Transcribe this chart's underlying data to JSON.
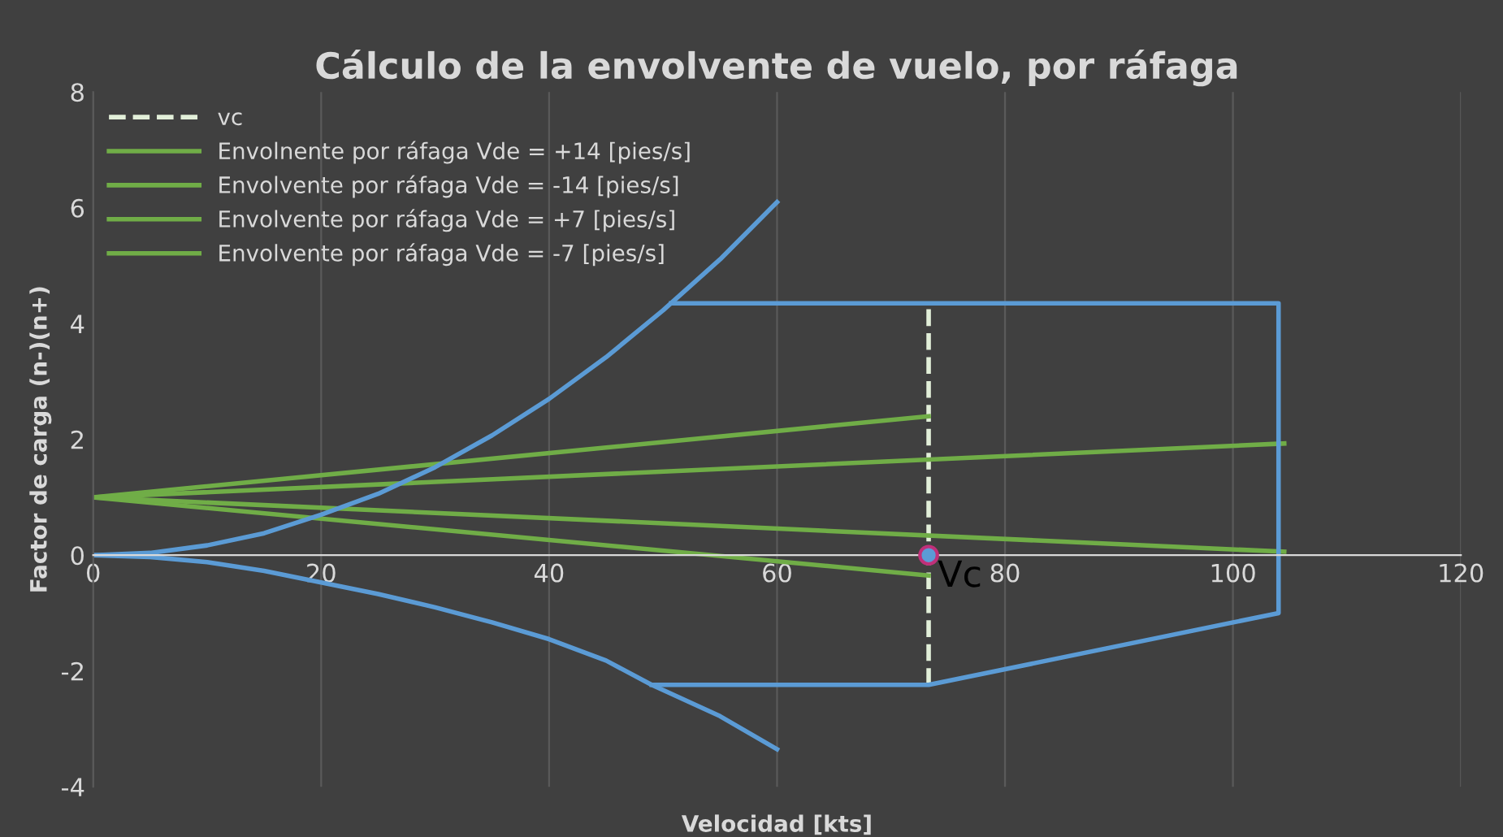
{
  "chart_data": {
    "type": "line",
    "title": "Cálculo de la envolvente de vuelo, por ráfaga",
    "xlabel": "Velocidad [kts]",
    "ylabel": "Factor de carga (n-)(n+)",
    "xlim": [
      0,
      120
    ],
    "xticks": [
      0,
      20,
      40,
      60,
      80,
      100,
      120
    ],
    "ylim": [
      -4,
      8
    ],
    "yticks": [
      -4,
      -2,
      0,
      2,
      4,
      6,
      8
    ],
    "grid": "x",
    "legend": "top left",
    "marker": "none",
    "line_style": "solid",
    "series": [
      {
        "name": "vc",
        "color": "#e2efd9",
        "line_style": "dashed",
        "x": [
          73.3,
          73.3
        ],
        "values": [
          -2.24,
          4.35
        ]
      },
      {
        "name": "Envolnente por ráfaga Vde = +14 [pies/s]",
        "color": "#70ad47",
        "x": [
          0,
          73.3
        ],
        "values": [
          1,
          2.4
        ]
      },
      {
        "name": "Envolvente por ráfaga Vde = -14 [pies/s]",
        "color": "#70ad47",
        "x": [
          0,
          73.3
        ],
        "values": [
          1,
          -0.35
        ]
      },
      {
        "name": "Envolvente por ráfaga Vde = +7 [pies/s]",
        "color": "#70ad47",
        "x": [
          0,
          104.5
        ],
        "values": [
          1,
          1.93
        ]
      },
      {
        "name": "Envolvente por ráfaga Vde = -7 [pies/s]",
        "color": "#70ad47",
        "x": [
          0,
          104.5
        ],
        "values": [
          1,
          0.06
        ]
      },
      {
        "color": "#5b9bd5",
        "x": [
          0,
          5,
          10,
          15,
          20,
          25,
          30,
          35,
          40,
          45,
          50,
          55,
          60
        ],
        "values": [
          0,
          0.04,
          0.17,
          0.38,
          0.7,
          1.06,
          1.52,
          2.07,
          2.7,
          3.42,
          4.23,
          5.11,
          6.1
        ]
      },
      {
        "color": "#5b9bd5",
        "x": [
          0,
          5,
          10,
          15,
          20,
          25,
          30,
          35,
          40,
          45,
          49,
          55,
          60
        ],
        "values": [
          0,
          -0.03,
          -0.12,
          -0.27,
          -0.47,
          -0.67,
          -0.9,
          -1.16,
          -1.45,
          -1.82,
          -2.24,
          -2.78,
          -3.35
        ]
      },
      {
        "color": "#5b9bd5",
        "x": [
          50.7,
          104,
          104,
          73.3,
          49
        ],
        "values": [
          4.35,
          4.35,
          -1.0,
          -2.24,
          -2.24
        ]
      },
      {
        "type": "scatter",
        "marker": "circle",
        "color": "#5b9bd5",
        "x": [
          73.3
        ],
        "values": [
          0
        ]
      }
    ],
    "annotations": [
      {
        "text": "Vc",
        "x": 73.3,
        "y": 0
      }
    ]
  }
}
